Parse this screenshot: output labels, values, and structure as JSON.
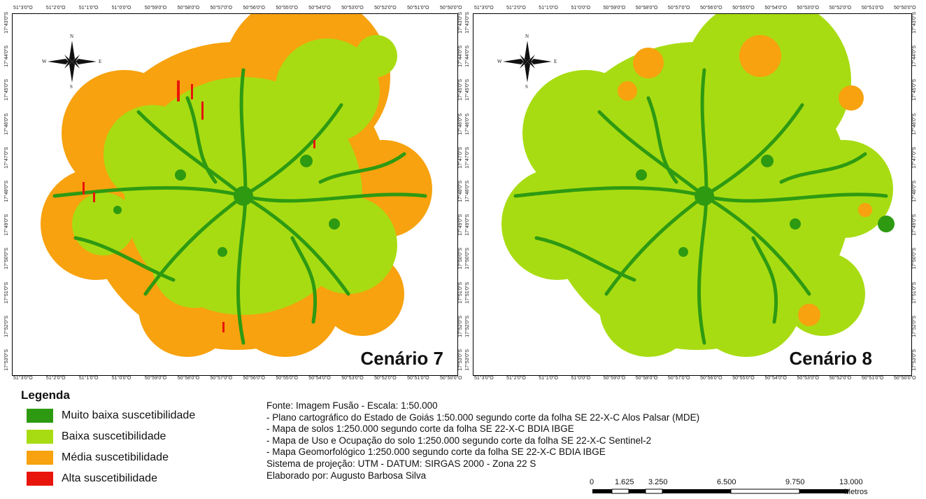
{
  "lon_ticks": [
    "51°3'0\"O",
    "51°2'0\"O",
    "51°1'0\"O",
    "51°0'0\"O",
    "50°59'0\"O",
    "50°58'0\"O",
    "50°57'0\"O",
    "50°56'0\"O",
    "50°55'0\"O",
    "50°54'0\"O",
    "50°53'0\"O",
    "50°52'0\"O",
    "50°51'0\"O",
    "50°50'0\"O"
  ],
  "lat_ticks": [
    "17°43'0\"S",
    "17°44'0\"S",
    "17°45'0\"S",
    "17°46'0\"S",
    "17°47'0\"S",
    "17°48'0\"S",
    "17°49'0\"S",
    "17°50'0\"S",
    "17°51'0\"S",
    "17°52'0\"S",
    "17°53'0\"S"
  ],
  "compass": {
    "n": "N",
    "s": "S",
    "e": "E",
    "w": "W"
  },
  "maps": [
    {
      "label": "Cenário 7"
    },
    {
      "label": "Cenário 8"
    }
  ],
  "legend": {
    "title": "Legenda",
    "items": [
      {
        "label": "Muito baixa suscetibilidade",
        "color": "#2e9a12"
      },
      {
        "label": "Baixa suscetibilidade",
        "color": "#a8dc12"
      },
      {
        "label": "Média suscetibilidade",
        "color": "#f7a20e"
      },
      {
        "label": "Alta suscetibilidade",
        "color": "#e8150d"
      }
    ]
  },
  "source_lines": [
    "Fonte: Imagem Fusão - Escala: 1:50.000",
    "- Plano cartográfico do Estado de Goiás 1:50.000 segundo corte da folha SE 22-X-C Alos Palsar (MDE)",
    "- Mapa de solos 1:250.000 segundo corte da folha SE 22-X-C BDIA IBGE",
    "- Mapa de Uso e Ocupação do solo 1:250.000 segundo corte da folha SE 22-X-C Sentinel-2",
    "- Mapa Geomorfológico 1:250.000 segundo corte da folha SE 22-X-C BDIA IBGE",
    "Sistema de projeção: UTM - DATUM: SIRGAS 2000 - Zona 22 S",
    "Elaborado por: Augusto Barbosa Silva"
  ],
  "scale": {
    "labels": [
      "0",
      "1.625",
      "3.250",
      "6.500",
      "9.750",
      "13.000"
    ],
    "unit": "Metros"
  }
}
